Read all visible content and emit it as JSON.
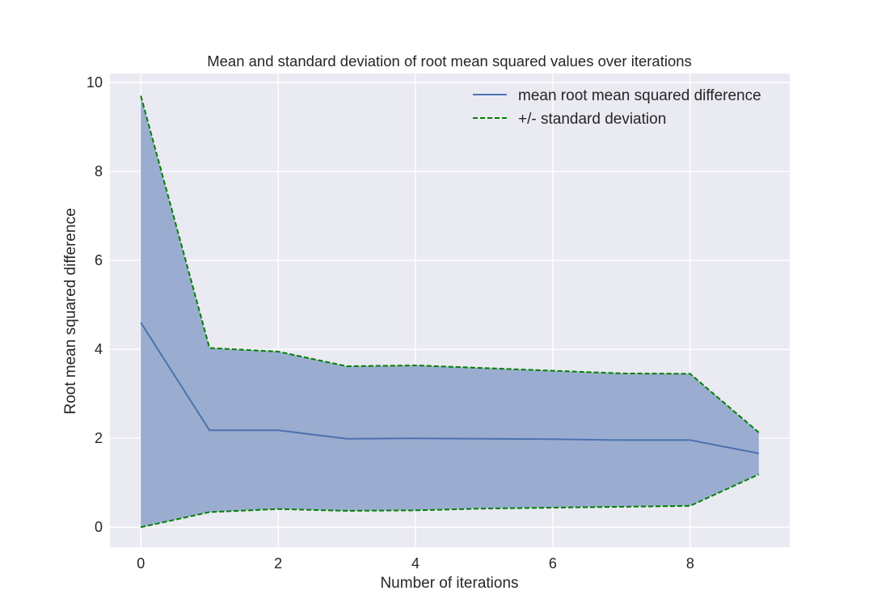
{
  "chart_data": {
    "type": "line",
    "title": "Mean and standard deviation of root mean squared values over iterations",
    "xlabel": "Number of iterations",
    "ylabel": "Root mean squared difference",
    "xlim": [
      -0.45,
      9.45
    ],
    "ylim": [
      -0.45,
      10.2
    ],
    "x_ticks": [
      0,
      2,
      4,
      6,
      8
    ],
    "y_ticks": [
      0,
      2,
      4,
      6,
      8,
      10
    ],
    "grid": true,
    "legend_position": "top-right",
    "x": [
      0,
      1,
      2,
      3,
      4,
      5,
      6,
      7,
      8,
      9
    ],
    "series": [
      {
        "name": "mean root mean squared difference",
        "style": "solid",
        "color": "#4c72b0",
        "values": [
          4.6,
          2.18,
          2.18,
          1.99,
          2.0,
          1.99,
          1.98,
          1.96,
          1.96,
          1.66
        ]
      },
      {
        "name": "+/- standard deviation",
        "style": "dashed",
        "color": "#008000",
        "upper": [
          9.7,
          4.03,
          3.95,
          3.62,
          3.64,
          3.58,
          3.52,
          3.46,
          3.45,
          2.13
        ],
        "lower": [
          0.0,
          0.34,
          0.41,
          0.37,
          0.38,
          0.42,
          0.44,
          0.46,
          0.48,
          1.19
        ]
      }
    ],
    "fill_color": "#9aadd0",
    "background_color": "#eaeaf2",
    "grid_color": "#ffffff"
  }
}
